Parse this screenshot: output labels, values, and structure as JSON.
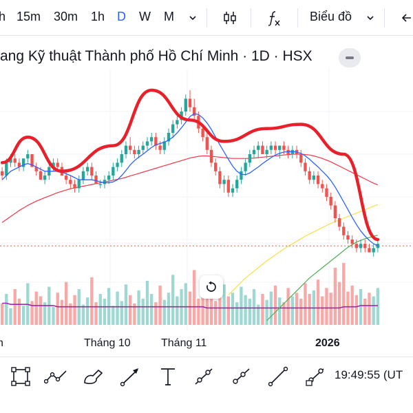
{
  "toolbar": {
    "timeframes": [
      "h",
      "15m",
      "30m",
      "1h",
      "D",
      "W",
      "M"
    ],
    "active_timeframe": "D",
    "more_icon": "chevron-down-icon",
    "candle_icon": "candlestick-icon",
    "indicator_icon": "fx-icon",
    "chart_type_label": "Biểu đồ",
    "back_icon": "arrow-left-icon"
  },
  "chart_title": "ang Kỹ thuật Thành phố Hồ Chí Minh · 1D · HSX",
  "x_axis_labels": [
    {
      "text": "h",
      "bold": false
    },
    {
      "text": "Tháng 10",
      "bold": false
    },
    {
      "text": "Tháng 11",
      "bold": false
    },
    {
      "text": "2026",
      "bold": true
    }
  ],
  "clock": "19:49:55 (UT",
  "tools": [
    "rectangle-icon",
    "path-icon",
    "brush-icon",
    "arrow-icon",
    "text-icon",
    "trend-line-icon",
    "ray-icon",
    "line-icon",
    "extended-line-icon"
  ],
  "colors": {
    "up": "#26a69a",
    "down": "#ef5350",
    "pattern": "#e8202a",
    "ma_blue": "#2962ff",
    "ma_red": "#f23645",
    "ma_yellow": "#f5e042",
    "ma_green": "#4caf50",
    "volume_ma": "#9c27b0",
    "accent": "#2962ff"
  },
  "chart_data": {
    "type": "candlestick",
    "ohlc": [
      [
        34,
        35,
        32,
        33
      ],
      [
        33,
        37,
        32,
        36
      ],
      [
        36,
        38,
        35,
        37
      ],
      [
        37,
        38,
        35,
        36
      ],
      [
        36,
        37,
        34,
        35
      ],
      [
        35,
        37,
        34,
        37
      ],
      [
        37,
        39,
        36,
        38
      ],
      [
        38,
        38,
        35,
        35
      ],
      [
        35,
        36,
        33,
        34
      ],
      [
        34,
        35,
        32,
        32
      ],
      [
        32,
        34,
        31,
        33
      ],
      [
        33,
        36,
        32,
        35
      ],
      [
        35,
        37,
        34,
        36
      ],
      [
        36,
        37,
        34,
        35
      ],
      [
        35,
        36,
        33,
        33
      ],
      [
        33,
        34,
        31,
        32
      ],
      [
        32,
        33,
        30,
        31
      ],
      [
        31,
        32,
        29,
        30
      ],
      [
        30,
        33,
        29,
        32
      ],
      [
        32,
        35,
        31,
        34
      ],
      [
        34,
        36,
        33,
        35
      ],
      [
        35,
        36,
        32,
        33
      ],
      [
        33,
        34,
        31,
        31
      ],
      [
        31,
        32,
        30,
        31
      ],
      [
        31,
        33,
        30,
        32
      ],
      [
        32,
        34,
        31,
        33
      ],
      [
        33,
        36,
        32,
        35
      ],
      [
        35,
        37,
        34,
        36
      ],
      [
        36,
        39,
        35,
        38
      ],
      [
        38,
        41,
        37,
        40
      ],
      [
        40,
        42,
        38,
        39
      ],
      [
        39,
        40,
        37,
        38
      ],
      [
        38,
        40,
        37,
        39
      ],
      [
        39,
        41,
        38,
        40
      ],
      [
        40,
        42,
        39,
        41
      ],
      [
        41,
        43,
        40,
        42
      ],
      [
        42,
        43,
        39,
        40
      ],
      [
        40,
        41,
        38,
        39
      ],
      [
        39,
        42,
        38,
        41
      ],
      [
        41,
        44,
        40,
        43
      ],
      [
        43,
        46,
        42,
        45
      ],
      [
        45,
        47,
        44,
        46
      ],
      [
        46,
        49,
        45,
        48
      ],
      [
        48,
        52,
        47,
        51
      ],
      [
        51,
        53,
        48,
        49
      ],
      [
        49,
        51,
        46,
        47
      ],
      [
        47,
        48,
        43,
        44
      ],
      [
        44,
        45,
        41,
        42
      ],
      [
        42,
        43,
        38,
        39
      ],
      [
        39,
        40,
        35,
        36
      ],
      [
        36,
        37,
        33,
        34
      ],
      [
        34,
        35,
        30,
        31
      ],
      [
        31,
        33,
        29,
        32
      ],
      [
        32,
        33,
        28,
        29
      ],
      [
        29,
        31,
        28,
        30
      ],
      [
        30,
        33,
        29,
        32
      ],
      [
        32,
        35,
        31,
        34
      ],
      [
        34,
        37,
        33,
        36
      ],
      [
        36,
        39,
        35,
        38
      ],
      [
        38,
        40,
        37,
        39
      ],
      [
        39,
        41,
        37,
        40
      ],
      [
        40,
        41,
        38,
        38
      ],
      [
        38,
        40,
        37,
        39
      ],
      [
        39,
        41,
        38,
        40
      ],
      [
        40,
        41,
        38,
        39
      ],
      [
        39,
        40,
        37,
        40
      ],
      [
        40,
        41,
        38,
        39
      ],
      [
        39,
        40,
        37,
        38
      ],
      [
        38,
        40,
        37,
        39
      ],
      [
        39,
        40,
        37,
        38
      ],
      [
        38,
        39,
        35,
        36
      ],
      [
        36,
        37,
        33,
        34
      ],
      [
        34,
        35,
        31,
        32
      ],
      [
        32,
        34,
        31,
        33
      ],
      [
        33,
        34,
        30,
        31
      ],
      [
        31,
        32,
        29,
        30
      ],
      [
        30,
        31,
        27,
        28
      ],
      [
        28,
        29,
        25,
        26
      ],
      [
        26,
        27,
        22,
        23
      ],
      [
        23,
        24,
        20,
        21
      ],
      [
        21,
        22,
        18,
        19
      ],
      [
        19,
        20,
        17,
        18
      ],
      [
        18,
        19,
        16,
        17
      ],
      [
        17,
        18,
        15,
        16
      ],
      [
        16,
        18,
        15,
        17
      ],
      [
        17,
        18,
        15,
        16
      ],
      [
        16,
        17,
        15,
        15
      ],
      [
        15,
        17,
        14,
        16
      ],
      [
        16,
        18,
        15,
        17
      ]
    ],
    "volume": [
      18,
      26,
      14,
      30,
      22,
      16,
      35,
      20,
      28,
      24,
      19,
      32,
      15,
      27,
      21,
      36,
      18,
      25,
      30,
      17,
      23,
      40,
      19,
      26,
      22,
      31,
      16,
      28,
      20,
      34,
      25,
      18,
      29,
      22,
      37,
      26,
      19,
      33,
      21,
      27,
      42,
      24,
      30,
      35,
      28,
      46,
      22,
      31,
      26,
      38,
      20,
      29,
      34,
      24,
      27,
      19,
      32,
      25,
      22,
      30,
      17,
      26,
      21,
      28,
      33,
      23,
      19,
      31,
      24,
      27,
      22,
      35,
      26,
      29,
      38,
      24,
      31,
      27,
      48,
      36,
      52,
      28,
      33,
      25,
      30,
      22,
      27,
      24,
      31
    ],
    "ma_blue": [
      32,
      33,
      34,
      34.5,
      35,
      35.5,
      35.8,
      35.5,
      35,
      34.5,
      34,
      34,
      34,
      34,
      33.8,
      33.4,
      33,
      32.5,
      32,
      32,
      32,
      32,
      31.8,
      31.5,
      31.3,
      31.3,
      31.5,
      32,
      33,
      34.2,
      35.5,
      36.5,
      37.3,
      38,
      38.8,
      39.6,
      40.2,
      40.5,
      40.8,
      41.3,
      42,
      43,
      44.2,
      45.5,
      46.8,
      47.5,
      47.3,
      46.5,
      45.3,
      43.8,
      42,
      40.2,
      38.5,
      36.8,
      35.2,
      34,
      33.3,
      33.2,
      33.6,
      34.3,
      35,
      35.8,
      36.5,
      37.2,
      37.8,
      38.2,
      38.5,
      38.6,
      38.6,
      38.5,
      38.2,
      37.6,
      36.8,
      35.9,
      35,
      34,
      33,
      31.8,
      30.3,
      28.6,
      26.8,
      25,
      23.2,
      21.5,
      20,
      18.8,
      17.8,
      17,
      16.6
    ],
    "ma_red": [
      22,
      22.7,
      23.4,
      24.1,
      24.8,
      25.4,
      26,
      26.5,
      27,
      27.4,
      27.8,
      28.2,
      28.6,
      29,
      29.3,
      29.6,
      29.9,
      30.1,
      30.3,
      30.5,
      30.7,
      30.9,
      31.1,
      31.3,
      31.5,
      31.7,
      31.9,
      32.1,
      32.3,
      32.6,
      32.9,
      33.2,
      33.5,
      33.8,
      34.1,
      34.4,
      34.7,
      35,
      35.3,
      35.6,
      35.9,
      36.2,
      36.5,
      36.8,
      37.1,
      37.3,
      37.5,
      37.6,
      37.6,
      37.5,
      37.4,
      37.3,
      37.2,
      37.1,
      37,
      37,
      37,
      37,
      37,
      37.1,
      37.2,
      37.3,
      37.4,
      37.5,
      37.6,
      37.7,
      37.8,
      37.9,
      38,
      38,
      38,
      37.9,
      37.8,
      37.6,
      37.3,
      37,
      36.6,
      36.2,
      35.7,
      35.2,
      34.7,
      34.2,
      33.7,
      33.2,
      32.7,
      32.2,
      31.7,
      31.2,
      30.8
    ],
    "ma_yellow": [
      null,
      null,
      null,
      null,
      null,
      null,
      null,
      null,
      null,
      null,
      null,
      null,
      null,
      null,
      null,
      null,
      null,
      null,
      null,
      null,
      null,
      null,
      null,
      null,
      null,
      null,
      null,
      null,
      null,
      null,
      null,
      null,
      null,
      null,
      null,
      null,
      null,
      null,
      null,
      null,
      null,
      null,
      null,
      null,
      null,
      null,
      null,
      null,
      null,
      null,
      null,
      null,
      null,
      5,
      6,
      7,
      8,
      9,
      9.8,
      10.6,
      11.4,
      12.2,
      13,
      13.7,
      14.4,
      15.1,
      15.8,
      16.4,
      17,
      17.6,
      18.2,
      18.8,
      19.3,
      19.8,
      20.3,
      20.8,
      21.3,
      21.8,
      22.2,
      22.6,
      23,
      23.4,
      23.8,
      24.2,
      24.6,
      25,
      25.4,
      25.8,
      26.2
    ],
    "ma_green": [
      null,
      null,
      null,
      null,
      null,
      null,
      null,
      null,
      null,
      null,
      null,
      null,
      null,
      null,
      null,
      null,
      null,
      null,
      null,
      null,
      null,
      null,
      null,
      null,
      null,
      null,
      null,
      null,
      null,
      null,
      null,
      null,
      null,
      null,
      null,
      null,
      null,
      null,
      null,
      null,
      null,
      null,
      null,
      null,
      null,
      null,
      null,
      null,
      null,
      null,
      null,
      null,
      null,
      null,
      null,
      null,
      null,
      null,
      null,
      null,
      null,
      null,
      -1,
      0,
      1,
      2,
      3,
      4,
      5,
      6,
      7,
      8,
      9,
      9.8,
      10.6,
      11.4,
      12.2,
      13,
      13.8,
      14.6,
      15.4,
      16.2,
      16.8,
      17.4,
      17.8,
      18.2,
      18.5,
      18.8,
      19
    ],
    "pattern_line": [
      [
        0,
        36
      ],
      [
        6,
        42
      ],
      [
        14,
        34
      ],
      [
        26,
        40
      ],
      [
        35,
        53
      ],
      [
        44,
        46
      ],
      [
        52,
        41
      ],
      [
        62,
        44
      ],
      [
        70,
        45
      ],
      [
        80,
        38
      ],
      [
        88,
        18
      ]
    ],
    "volume_ma": [
      24,
      24,
      23,
      23,
      23,
      23,
      23,
      22,
      22,
      22,
      22,
      22,
      22,
      21,
      21,
      21,
      21,
      21,
      21,
      21,
      21,
      21,
      21,
      21,
      21,
      21,
      21,
      21,
      21,
      21,
      21,
      21,
      21,
      21,
      21,
      21,
      21,
      21,
      21,
      21,
      21,
      21,
      21,
      21,
      21,
      21,
      21,
      21,
      20,
      20,
      20,
      20,
      20,
      20,
      20,
      20,
      20,
      20,
      20,
      20,
      20,
      20,
      20,
      20,
      20,
      20,
      20,
      20,
      20,
      20,
      20,
      20,
      20,
      20,
      20,
      20,
      20,
      20,
      20,
      20,
      21,
      21,
      21,
      21,
      22,
      22,
      22,
      22,
      22
    ],
    "last_price_line": 16.5,
    "ylim": [
      -2,
      58
    ],
    "grid": true
  }
}
